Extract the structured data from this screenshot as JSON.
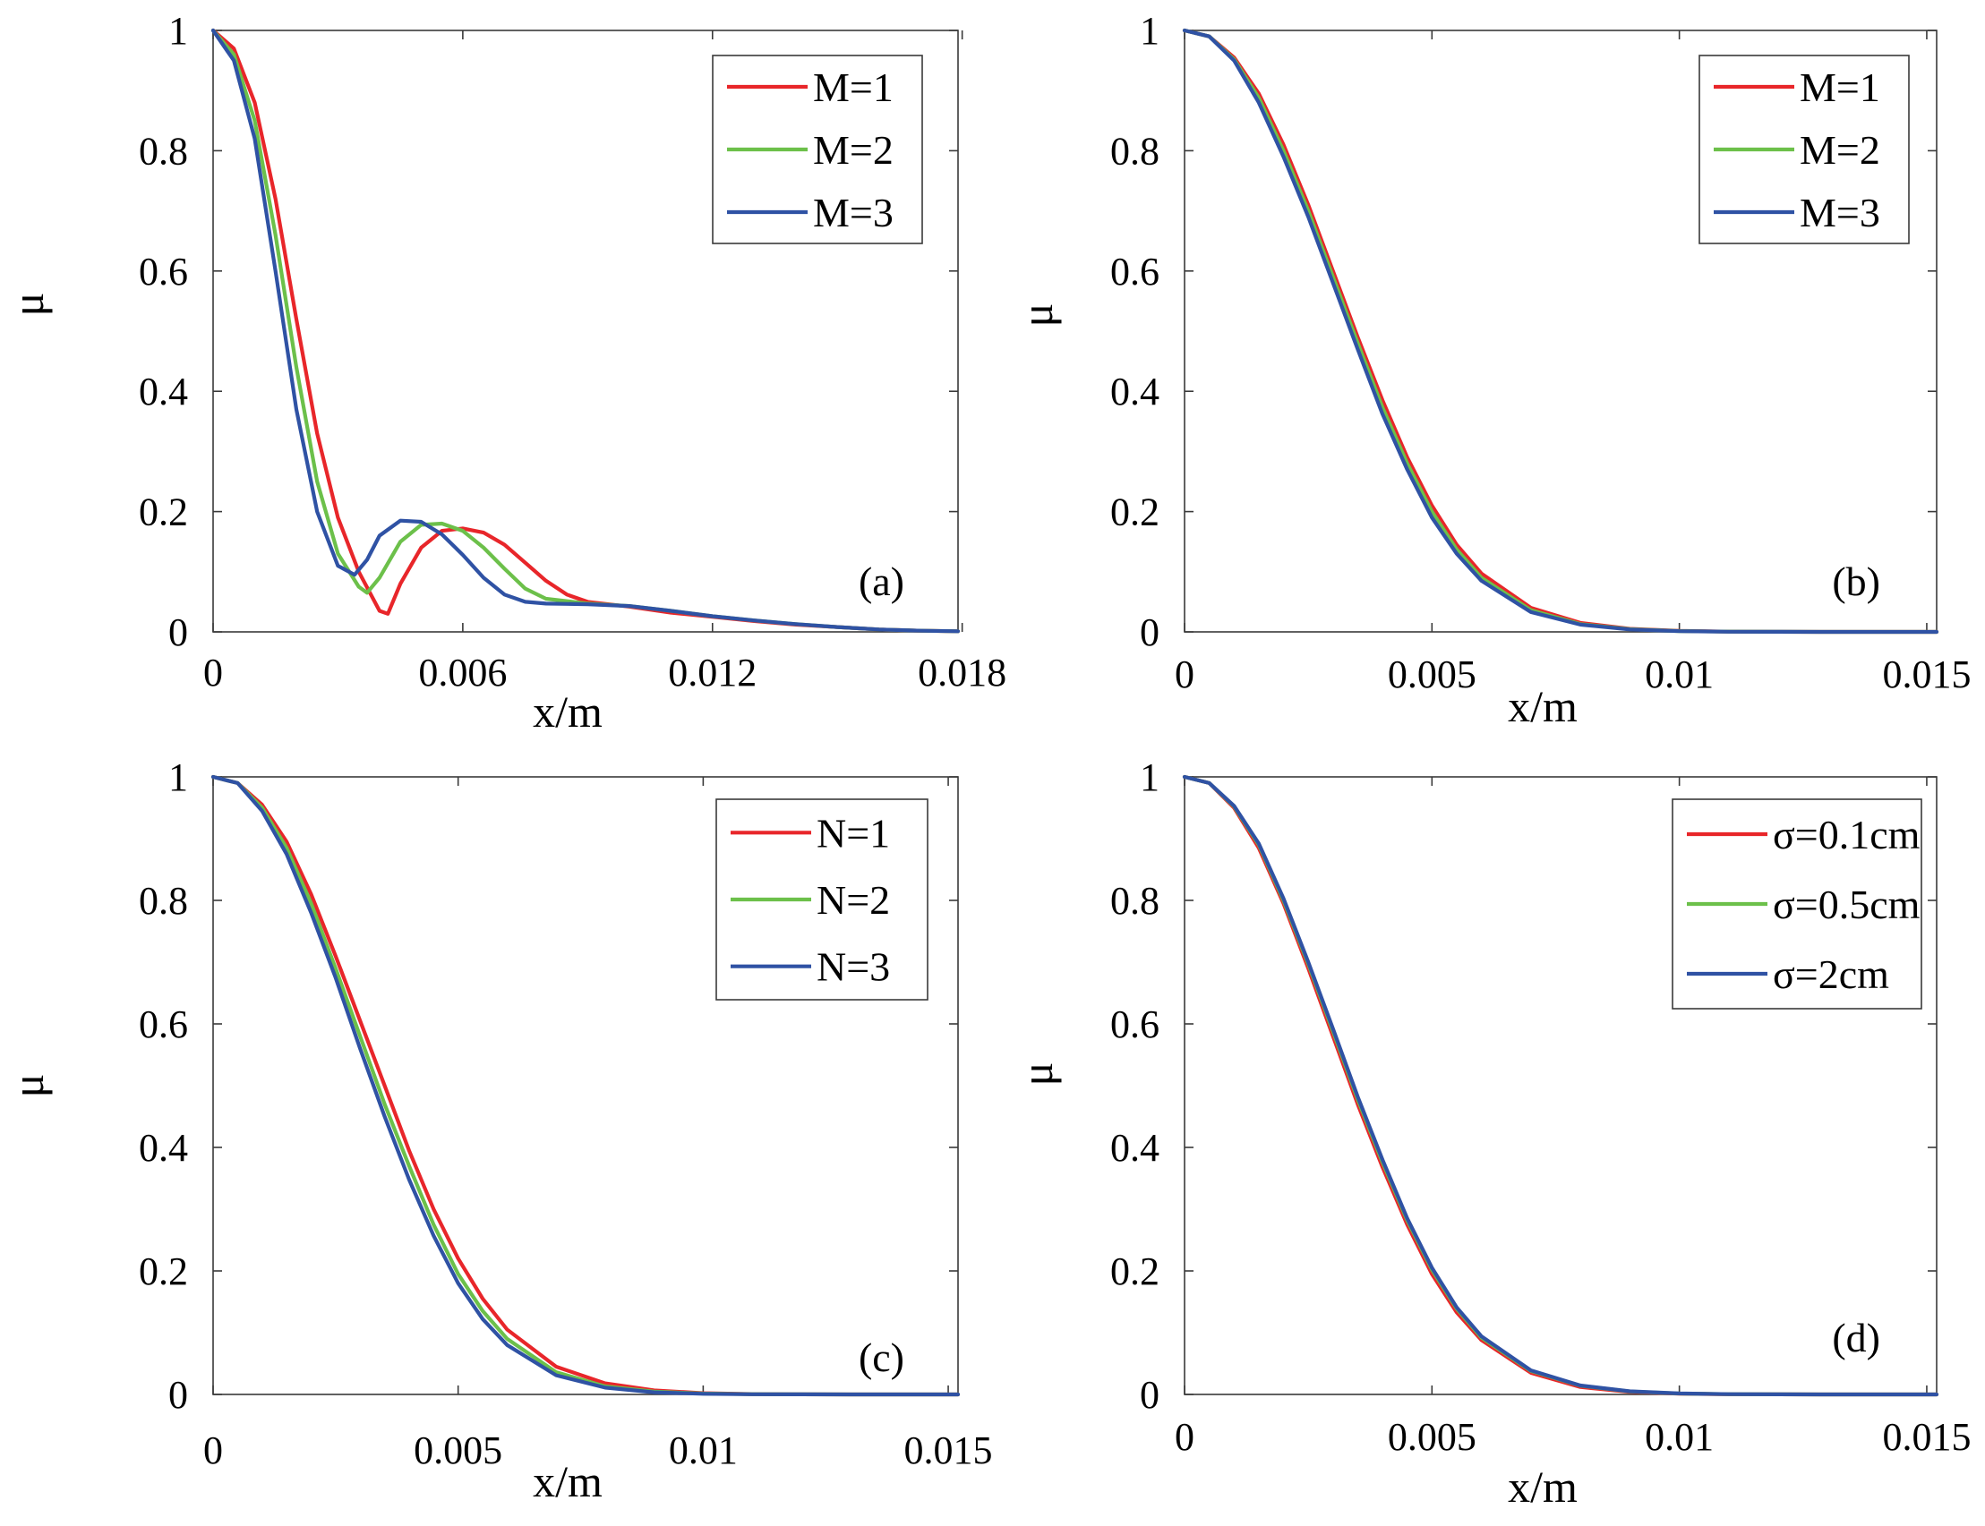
{
  "figure": {
    "colors": {
      "red": "#e8262a",
      "green": "#6cc04a",
      "blue": "#2f52a4"
    }
  },
  "chart_data": [
    {
      "panel": "(a)",
      "type": "line",
      "xlabel": "x/m",
      "ylabel": "μ",
      "xlim": [
        0,
        0.0179
      ],
      "ylim": [
        0,
        1
      ],
      "xticks": [
        0,
        0.006,
        0.012,
        0.018
      ],
      "xtick_labels": [
        "0",
        "0.006",
        "0.012",
        "0.018"
      ],
      "yticks": [
        0,
        0.2,
        0.4,
        0.6,
        0.8,
        1
      ],
      "ytick_labels": [
        "0",
        "0.2",
        "0.4",
        "0.6",
        "0.8",
        "1"
      ],
      "legend_position": "top-right",
      "series": [
        {
          "name": "M=1",
          "color": "#e8262a",
          "x": [
            0,
            0.0005,
            0.001,
            0.0015,
            0.002,
            0.0025,
            0.003,
            0.0035,
            0.004,
            0.0042,
            0.0045,
            0.005,
            0.0055,
            0.006,
            0.0065,
            0.007,
            0.0075,
            0.008,
            0.0085,
            0.009,
            0.01,
            0.011,
            0.012,
            0.013,
            0.014,
            0.015,
            0.016,
            0.017,
            0.0179
          ],
          "y": [
            1.0,
            0.97,
            0.88,
            0.72,
            0.52,
            0.33,
            0.19,
            0.1,
            0.035,
            0.03,
            0.08,
            0.14,
            0.168,
            0.172,
            0.165,
            0.145,
            0.115,
            0.085,
            0.062,
            0.05,
            0.042,
            0.032,
            0.025,
            0.018,
            0.012,
            0.008,
            0.004,
            0.002,
            0.001
          ]
        },
        {
          "name": "M=2",
          "color": "#6cc04a",
          "x": [
            0,
            0.0005,
            0.001,
            0.0015,
            0.002,
            0.0025,
            0.003,
            0.0035,
            0.0037,
            0.004,
            0.0045,
            0.005,
            0.0055,
            0.006,
            0.0065,
            0.007,
            0.0075,
            0.008,
            0.009,
            0.01,
            0.011,
            0.012,
            0.013,
            0.014,
            0.015,
            0.016,
            0.017,
            0.0179
          ],
          "y": [
            1.0,
            0.96,
            0.85,
            0.66,
            0.44,
            0.25,
            0.13,
            0.075,
            0.065,
            0.09,
            0.15,
            0.178,
            0.18,
            0.168,
            0.14,
            0.105,
            0.072,
            0.055,
            0.047,
            0.043,
            0.035,
            0.026,
            0.019,
            0.013,
            0.008,
            0.004,
            0.002,
            0.001
          ]
        },
        {
          "name": "M=3",
          "color": "#2f52a4",
          "x": [
            0,
            0.0005,
            0.001,
            0.0015,
            0.002,
            0.0025,
            0.003,
            0.0034,
            0.0037,
            0.004,
            0.0045,
            0.005,
            0.0055,
            0.006,
            0.0065,
            0.007,
            0.0075,
            0.008,
            0.009,
            0.01,
            0.011,
            0.012,
            0.013,
            0.014,
            0.015,
            0.016,
            0.017,
            0.0179
          ],
          "y": [
            1.0,
            0.95,
            0.82,
            0.6,
            0.37,
            0.2,
            0.11,
            0.095,
            0.12,
            0.16,
            0.185,
            0.183,
            0.162,
            0.128,
            0.09,
            0.062,
            0.05,
            0.047,
            0.046,
            0.043,
            0.035,
            0.026,
            0.019,
            0.013,
            0.008,
            0.004,
            0.002,
            0.001
          ]
        }
      ]
    },
    {
      "panel": "(b)",
      "type": "line",
      "xlabel": "x/m",
      "ylabel": "μ",
      "xlim": [
        0,
        0.0152
      ],
      "ylim": [
        0,
        1
      ],
      "xticks": [
        0,
        0.005,
        0.01,
        0.015
      ],
      "xtick_labels": [
        "0",
        "0.005",
        "0.01",
        "0.015"
      ],
      "yticks": [
        0,
        0.2,
        0.4,
        0.6,
        0.8,
        1
      ],
      "ytick_labels": [
        "0",
        "0.2",
        "0.4",
        "0.6",
        "0.8",
        "1"
      ],
      "legend_position": "top-right",
      "series": [
        {
          "name": "M=1",
          "color": "#e8262a",
          "x": [
            0,
            0.0005,
            0.001,
            0.0015,
            0.002,
            0.0025,
            0.003,
            0.0035,
            0.004,
            0.0045,
            0.005,
            0.0055,
            0.006,
            0.007,
            0.008,
            0.009,
            0.01,
            0.011,
            0.012,
            0.013,
            0.014,
            0.015,
            0.0152
          ],
          "y": [
            1.0,
            0.99,
            0.955,
            0.895,
            0.81,
            0.71,
            0.6,
            0.49,
            0.385,
            0.29,
            0.21,
            0.145,
            0.097,
            0.04,
            0.015,
            0.005,
            0.0016,
            0.0005,
            0.0001,
            0,
            0,
            0,
            0
          ]
        },
        {
          "name": "M=2",
          "color": "#6cc04a",
          "x": [
            0,
            0.0005,
            0.001,
            0.0015,
            0.002,
            0.0025,
            0.003,
            0.0035,
            0.004,
            0.0045,
            0.005,
            0.0055,
            0.006,
            0.007,
            0.008,
            0.009,
            0.01,
            0.011,
            0.012,
            0.013,
            0.014,
            0.015,
            0.0152
          ],
          "y": [
            1.0,
            0.99,
            0.952,
            0.888,
            0.8,
            0.7,
            0.59,
            0.48,
            0.373,
            0.28,
            0.2,
            0.137,
            0.09,
            0.036,
            0.013,
            0.0045,
            0.0014,
            0.0004,
            0.0001,
            0,
            0,
            0,
            0
          ]
        },
        {
          "name": "M=3",
          "color": "#2f52a4",
          "x": [
            0,
            0.0005,
            0.001,
            0.0015,
            0.002,
            0.0025,
            0.003,
            0.0035,
            0.004,
            0.0045,
            0.005,
            0.0055,
            0.006,
            0.007,
            0.008,
            0.009,
            0.01,
            0.011,
            0.012,
            0.013,
            0.014,
            0.015,
            0.0152
          ],
          "y": [
            1.0,
            0.99,
            0.95,
            0.88,
            0.79,
            0.69,
            0.58,
            0.47,
            0.362,
            0.27,
            0.19,
            0.13,
            0.085,
            0.033,
            0.012,
            0.004,
            0.0012,
            0.0003,
            0.0001,
            0,
            0,
            0,
            0
          ]
        }
      ]
    },
    {
      "panel": "(c)",
      "type": "line",
      "xlabel": "x/m",
      "ylabel": "μ",
      "xlim": [
        0,
        0.0152
      ],
      "ylim": [
        0,
        1
      ],
      "xticks": [
        0,
        0.005,
        0.01,
        0.015
      ],
      "xtick_labels": [
        "0",
        "0.005",
        "0.01",
        "0.015"
      ],
      "yticks": [
        0,
        0.2,
        0.4,
        0.6,
        0.8,
        1
      ],
      "ytick_labels": [
        "0",
        "0.2",
        "0.4",
        "0.6",
        "0.8",
        "1"
      ],
      "legend_position": "top-right",
      "series": [
        {
          "name": "N=1",
          "color": "#e8262a",
          "x": [
            0,
            0.0005,
            0.001,
            0.0015,
            0.002,
            0.0025,
            0.003,
            0.0035,
            0.004,
            0.0045,
            0.005,
            0.0055,
            0.006,
            0.007,
            0.008,
            0.009,
            0.01,
            0.011,
            0.012,
            0.013,
            0.014,
            0.015,
            0.0152
          ],
          "y": [
            1.0,
            0.99,
            0.955,
            0.895,
            0.81,
            0.71,
            0.605,
            0.5,
            0.395,
            0.3,
            0.22,
            0.155,
            0.105,
            0.045,
            0.018,
            0.0065,
            0.002,
            0.0006,
            0.0002,
            0,
            0,
            0,
            0
          ]
        },
        {
          "name": "N=2",
          "color": "#6cc04a",
          "x": [
            0,
            0.0005,
            0.001,
            0.0015,
            0.002,
            0.0025,
            0.003,
            0.0035,
            0.004,
            0.0045,
            0.005,
            0.0055,
            0.006,
            0.007,
            0.008,
            0.009,
            0.01,
            0.011,
            0.012,
            0.013,
            0.014,
            0.015,
            0.0152
          ],
          "y": [
            1.0,
            0.99,
            0.95,
            0.885,
            0.795,
            0.69,
            0.58,
            0.47,
            0.37,
            0.275,
            0.195,
            0.135,
            0.09,
            0.036,
            0.013,
            0.0045,
            0.0014,
            0.0004,
            0.0001,
            0,
            0,
            0,
            0
          ]
        },
        {
          "name": "N=3",
          "color": "#2f52a4",
          "x": [
            0,
            0.0005,
            0.001,
            0.0015,
            0.002,
            0.0025,
            0.003,
            0.0035,
            0.004,
            0.0045,
            0.005,
            0.0055,
            0.006,
            0.007,
            0.008,
            0.009,
            0.01,
            0.011,
            0.012,
            0.013,
            0.014,
            0.015,
            0.0152
          ],
          "y": [
            1.0,
            0.99,
            0.945,
            0.875,
            0.78,
            0.675,
            0.56,
            0.45,
            0.348,
            0.257,
            0.18,
            0.122,
            0.08,
            0.031,
            0.011,
            0.0035,
            0.001,
            0.0003,
            0.0001,
            0,
            0,
            0,
            0
          ]
        }
      ]
    },
    {
      "panel": "(d)",
      "type": "line",
      "xlabel": "x/m",
      "ylabel": "μ",
      "xlim": [
        0,
        0.0152
      ],
      "ylim": [
        0,
        1
      ],
      "xticks": [
        0,
        0.005,
        0.01,
        0.015
      ],
      "xtick_labels": [
        "0",
        "0.005",
        "0.01",
        "0.015"
      ],
      "yticks": [
        0,
        0.2,
        0.4,
        0.6,
        0.8,
        1
      ],
      "ytick_labels": [
        "0",
        "0.2",
        "0.4",
        "0.6",
        "0.8",
        "1"
      ],
      "legend_position": "top-right",
      "series": [
        {
          "name": "σ=0.1cm",
          "color": "#e8262a",
          "x": [
            0,
            0.0005,
            0.001,
            0.0015,
            0.002,
            0.0025,
            0.003,
            0.0035,
            0.004,
            0.0045,
            0.005,
            0.0055,
            0.006,
            0.007,
            0.008,
            0.009,
            0.01,
            0.011,
            0.012,
            0.013,
            0.014,
            0.015,
            0.0152
          ],
          "y": [
            1.0,
            0.99,
            0.95,
            0.885,
            0.795,
            0.69,
            0.58,
            0.47,
            0.368,
            0.275,
            0.195,
            0.133,
            0.088,
            0.035,
            0.012,
            0.004,
            0.0012,
            0.0003,
            0.0001,
            0,
            0,
            0,
            0
          ]
        },
        {
          "name": "σ=0.5cm",
          "color": "#6cc04a",
          "x": [
            0,
            0.0005,
            0.001,
            0.0015,
            0.002,
            0.0025,
            0.003,
            0.0035,
            0.004,
            0.0045,
            0.005,
            0.0055,
            0.006,
            0.007,
            0.008,
            0.009,
            0.01,
            0.011,
            0.012,
            0.013,
            0.014,
            0.015,
            0.0152
          ],
          "y": [
            1.0,
            0.99,
            0.952,
            0.89,
            0.8,
            0.697,
            0.588,
            0.478,
            0.376,
            0.282,
            0.202,
            0.139,
            0.092,
            0.038,
            0.014,
            0.0048,
            0.0015,
            0.0004,
            0.0001,
            0,
            0,
            0,
            0
          ]
        },
        {
          "name": "σ=2cm",
          "color": "#2f52a4",
          "x": [
            0,
            0.0005,
            0.001,
            0.0015,
            0.002,
            0.0025,
            0.003,
            0.0035,
            0.004,
            0.0045,
            0.005,
            0.0055,
            0.006,
            0.007,
            0.008,
            0.009,
            0.01,
            0.011,
            0.012,
            0.013,
            0.014,
            0.015,
            0.0152
          ],
          "y": [
            1.0,
            0.99,
            0.953,
            0.892,
            0.803,
            0.7,
            0.592,
            0.482,
            0.38,
            0.285,
            0.205,
            0.141,
            0.094,
            0.039,
            0.0145,
            0.005,
            0.0016,
            0.0005,
            0.0001,
            0,
            0,
            0,
            0
          ]
        }
      ]
    }
  ]
}
